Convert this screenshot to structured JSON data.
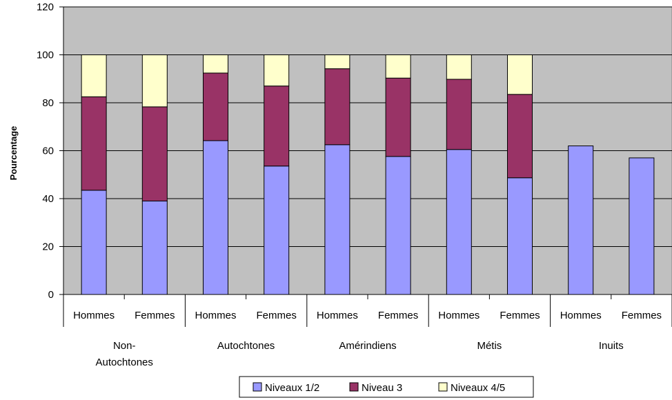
{
  "chart_data": {
    "type": "bar",
    "stacked": true,
    "ylabel": "Pourcentage",
    "xlabel": "",
    "ylim": [
      0,
      120
    ],
    "yticks": [
      0,
      20,
      40,
      60,
      80,
      100,
      120
    ],
    "grid": true,
    "legend_position": "bottom",
    "plot_background": "#c0c0c0",
    "groups": [
      "Non-\nAutochtones",
      "Autochtones",
      "Amérindiens",
      "Métis",
      "Inuits"
    ],
    "categories": [
      "Hommes",
      "Femmes",
      "Hommes",
      "Femmes",
      "Hommes",
      "Femmes",
      "Hommes",
      "Femmes",
      "Hommes",
      "Femmes"
    ],
    "series": [
      {
        "name": "Niveaux 1/2",
        "color": "#9999ff",
        "values": [
          43.5,
          39,
          64.2,
          53.6,
          62.5,
          57.6,
          60.5,
          48.7,
          62,
          57
        ]
      },
      {
        "name": "Niveau 3",
        "color": "#993366",
        "values": [
          39,
          39.3,
          28.2,
          33.4,
          31.7,
          32.7,
          29.3,
          34.8,
          null,
          null
        ]
      },
      {
        "name": "Niveaux 4/5",
        "color": "#ffffcc",
        "values": [
          17.5,
          21.7,
          7.6,
          13,
          5.8,
          9.7,
          10.2,
          16.5,
          null,
          null
        ]
      }
    ]
  }
}
